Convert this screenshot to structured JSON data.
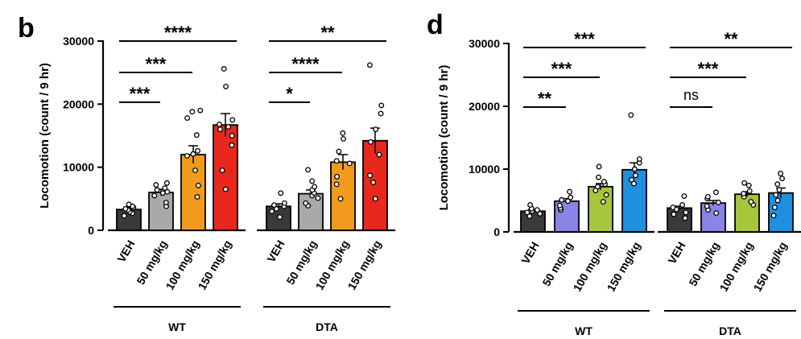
{
  "chart_data": [
    {
      "type": "bar",
      "panel_label": "b",
      "ylabel": "Locomotion (count / 9 hr)",
      "ylim": [
        0,
        30000
      ],
      "yticks": [
        0,
        10000,
        20000,
        30000
      ],
      "ytick_labels": [
        "0",
        "10000",
        "20000",
        "30000"
      ],
      "categories": [
        "VEH",
        "50 mg/kg",
        "100 mg/kg",
        "150 mg/kg"
      ],
      "groups": [
        {
          "name": "WT",
          "values": [
            3300,
            6000,
            12000,
            16700
          ],
          "errors": [
            300,
            500,
            1400,
            1800
          ],
          "colors": [
            "#3a3a3a",
            "#a9a9a9",
            "#f29a1d",
            "#e8271d"
          ],
          "points": [
            [
              2300,
              2700,
              2900,
              3200,
              3400,
              3600,
              3800,
              4100
            ],
            [
              3800,
              4400,
              5500,
              5900,
              6100,
              6400,
              6700,
              7200,
              7500
            ],
            [
              5300,
              7100,
              9500,
              11800,
              12100,
              12600,
              15100,
              17800,
              18800,
              19000
            ],
            [
              6500,
              9500,
              13500,
              15000,
              16000,
              16400,
              16800,
              17500,
              22800,
              25600
            ]
          ],
          "significance": [
            {
              "from": "VEH",
              "to": "50 mg/kg",
              "label": "***"
            },
            {
              "from": "VEH",
              "to": "100 mg/kg",
              "label": "***"
            },
            {
              "from": "VEH",
              "to": "150 mg/kg",
              "label": "****"
            }
          ]
        },
        {
          "name": "DTA",
          "values": [
            3800,
            5800,
            10800,
            14200
          ],
          "errors": [
            400,
            600,
            1200,
            2000
          ],
          "colors": [
            "#3a3a3a",
            "#a9a9a9",
            "#f29a1d",
            "#e8271d"
          ],
          "points": [
            [
              2100,
              3000,
              3400,
              3800,
              4000,
              4300,
              5900
            ],
            [
              3900,
              4300,
              5100,
              5500,
              5900,
              6400,
              6900,
              7800,
              9600
            ],
            [
              5000,
              7300,
              8500,
              10600,
              11000,
              12500,
              14500,
              15400
            ],
            [
              5000,
              7600,
              8700,
              12000,
              14000,
              16000,
              18500,
              19800,
              26200
            ]
          ],
          "significance": [
            {
              "from": "VEH",
              "to": "50 mg/kg",
              "label": "*"
            },
            {
              "from": "VEH",
              "to": "100 mg/kg",
              "label": "****"
            },
            {
              "from": "VEH",
              "to": "150 mg/kg",
              "label": "**"
            }
          ]
        }
      ]
    },
    {
      "type": "bar",
      "panel_label": "d",
      "ylabel": "Locomotion (count / 9 hr)",
      "ylim": [
        0,
        30000
      ],
      "yticks": [
        0,
        10000,
        20000,
        30000
      ],
      "ytick_labels": [
        "0",
        "10000",
        "20000",
        "30000"
      ],
      "categories": [
        "VEH",
        "50 mg/kg",
        "100 mg/kg",
        "150 mg/kg"
      ],
      "groups": [
        {
          "name": "WT",
          "values": [
            3300,
            4900,
            7200,
            9900
          ],
          "errors": [
            300,
            400,
            500,
            1100
          ],
          "colors": [
            "#3a3a3a",
            "#8a84e6",
            "#a6c63b",
            "#1f8fe0"
          ],
          "points": [
            [
              2500,
              2900,
              3100,
              3300,
              3500,
              3700,
              4300
            ],
            [
              3500,
              3800,
              4200,
              4900,
              5100,
              5500,
              6400
            ],
            [
              4800,
              5900,
              6600,
              7200,
              7600,
              8000,
              8700,
              10400
            ],
            [
              7700,
              8300,
              9000,
              10000,
              11000,
              11600,
              18600
            ]
          ],
          "significance": [
            {
              "from": "VEH",
              "to": "50 mg/kg",
              "label": "**"
            },
            {
              "from": "VEH",
              "to": "100 mg/kg",
              "label": "***"
            },
            {
              "from": "VEH",
              "to": "150 mg/kg",
              "label": "***"
            }
          ]
        },
        {
          "name": "DTA",
          "values": [
            3800,
            4600,
            6000,
            6200
          ],
          "errors": [
            300,
            400,
            400,
            800
          ],
          "colors": [
            "#3a3a3a",
            "#8a84e6",
            "#a6c63b",
            "#1f8fe0"
          ],
          "points": [
            [
              2200,
              2800,
              3100,
              3600,
              3900,
              4300,
              5700
            ],
            [
              3000,
              3500,
              4100,
              4700,
              5300,
              5600,
              6300
            ],
            [
              4300,
              4800,
              5600,
              6100,
              6500,
              7400,
              7800
            ],
            [
              2600,
              3900,
              5000,
              5900,
              6700,
              7600,
              8500,
              9300
            ]
          ],
          "significance": [
            {
              "from": "VEH",
              "to": "50 mg/kg",
              "label": "ns"
            },
            {
              "from": "VEH",
              "to": "100 mg/kg",
              "label": "***"
            },
            {
              "from": "VEH",
              "to": "150 mg/kg",
              "label": "**"
            }
          ]
        }
      ]
    }
  ]
}
